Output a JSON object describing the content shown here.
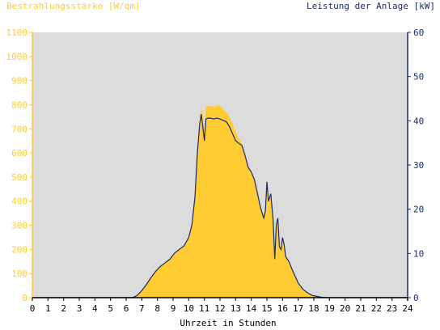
{
  "chart_data": {
    "type": "area",
    "left_axis_title": "Bestrahlungsstärke [W/qm]",
    "right_axis_title": "Leistung der Anlage [kW]",
    "xlabel": "Uhrzeit in Stunden",
    "x_ticks": [
      "0",
      "1",
      "2",
      "3",
      "4",
      "5",
      "6",
      "7",
      "8",
      "9",
      "10",
      "11",
      "12",
      "13",
      "14",
      "15",
      "16",
      "17",
      "18",
      "19",
      "20",
      "21",
      "22",
      "23",
      "24"
    ],
    "y_left_ticks": [
      "0",
      "100",
      "200",
      "300",
      "400",
      "500",
      "600",
      "700",
      "800",
      "900",
      "1000",
      "1100"
    ],
    "y_right_ticks": [
      "0",
      "10",
      "20",
      "30",
      "40",
      "50",
      "60"
    ],
    "xlim": [
      0,
      24
    ],
    "ylim_left": [
      0,
      1100
    ],
    "ylim_right": [
      0,
      60
    ],
    "grid": false,
    "colors": {
      "irradiance": "#ffcc33",
      "power": "#1a2a6c",
      "plot_bg": "#dcdcdc",
      "left_axis": "#ffcc33",
      "right_axis": "#1a2a6c"
    },
    "series": [
      {
        "name": "Bestrahlungsstärke [W/qm]",
        "axis": "left",
        "x": [
          0,
          6.4,
          6.7,
          7.0,
          7.3,
          7.6,
          7.9,
          8.2,
          8.5,
          8.8,
          9.1,
          9.4,
          9.7,
          10.0,
          10.2,
          10.4,
          10.55,
          10.7,
          10.8,
          10.9,
          11.0,
          11.1,
          11.2,
          11.4,
          11.6,
          11.8,
          12.0,
          12.2,
          12.4,
          12.6,
          12.8,
          13.0,
          13.2,
          13.4,
          13.6,
          13.8,
          14.0,
          14.2,
          14.4,
          14.6,
          14.8,
          14.9,
          15.0,
          15.1,
          15.25,
          15.4,
          15.5,
          15.6,
          15.7,
          15.8,
          15.9,
          16.0,
          16.1,
          16.2,
          16.3,
          16.4,
          16.6,
          16.8,
          17.0,
          17.3,
          17.6,
          17.9,
          18.2,
          18.5,
          18.8,
          19.0,
          24
        ],
        "values": [
          0,
          0,
          10,
          30,
          55,
          85,
          110,
          130,
          145,
          160,
          185,
          200,
          215,
          250,
          300,
          420,
          600,
          720,
          790,
          760,
          680,
          790,
          795,
          795,
          790,
          800,
          795,
          780,
          770,
          750,
          720,
          690,
          660,
          640,
          600,
          540,
          520,
          490,
          430,
          380,
          340,
          370,
          460,
          400,
          410,
          310,
          160,
          300,
          310,
          200,
          200,
          250,
          220,
          170,
          160,
          150,
          120,
          90,
          60,
          35,
          20,
          10,
          5,
          2,
          0,
          0,
          0
        ]
      },
      {
        "name": "Leistung der Anlage [kW]",
        "axis": "right",
        "x": [
          0,
          6.4,
          6.7,
          7.0,
          7.3,
          7.6,
          7.9,
          8.2,
          8.5,
          8.8,
          9.1,
          9.4,
          9.7,
          10.0,
          10.2,
          10.4,
          10.55,
          10.7,
          10.8,
          10.9,
          11.0,
          11.1,
          11.2,
          11.4,
          11.6,
          11.8,
          12.0,
          12.2,
          12.4,
          12.6,
          12.8,
          13.0,
          13.2,
          13.4,
          13.6,
          13.8,
          14.0,
          14.2,
          14.4,
          14.6,
          14.8,
          14.9,
          15.0,
          15.1,
          15.25,
          15.4,
          15.5,
          15.6,
          15.7,
          15.8,
          15.9,
          16.0,
          16.1,
          16.2,
          16.3,
          16.4,
          16.6,
          16.8,
          17.0,
          17.3,
          17.6,
          17.9,
          18.2,
          18.5,
          18.8,
          19.0,
          24
        ],
        "values": [
          0,
          0,
          0.5,
          1.6,
          3.0,
          4.6,
          6.0,
          7.1,
          7.9,
          8.7,
          10.1,
          10.9,
          11.7,
          13.6,
          16.4,
          22.9,
          32.7,
          39.3,
          41.5,
          38.7,
          35.5,
          40.4,
          40.6,
          40.6,
          40.4,
          40.6,
          40.4,
          40.1,
          39.8,
          38.7,
          37.1,
          35.5,
          34.9,
          34.4,
          32.2,
          29.5,
          28.4,
          26.7,
          23.5,
          20.2,
          18.0,
          19.6,
          26.2,
          21.8,
          23.5,
          17.5,
          8.7,
          16.4,
          18.0,
          11.5,
          10.9,
          13.6,
          12.0,
          9.3,
          8.7,
          8.2,
          6.5,
          4.9,
          3.3,
          1.9,
          1.1,
          0.5,
          0.3,
          0.1,
          0,
          0,
          0
        ]
      }
    ]
  }
}
